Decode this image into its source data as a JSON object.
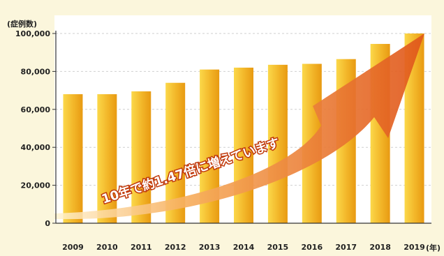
{
  "chart_data": {
    "type": "bar",
    "ylabel": "(症例数)",
    "xlabel": "(年)",
    "categories": [
      "2009",
      "2010",
      "2011",
      "2012",
      "2013",
      "2014",
      "2015",
      "2016",
      "2017",
      "2018",
      "2019"
    ],
    "values": [
      68000,
      68000,
      69500,
      74000,
      81000,
      82000,
      83500,
      84000,
      86500,
      94500,
      100000
    ],
    "ylim": [
      0,
      100000
    ],
    "yticks": [
      {
        "value": 0,
        "label": "0"
      },
      {
        "value": 20000,
        "label": "20,000"
      },
      {
        "value": 40000,
        "label": "40,000"
      },
      {
        "value": 60000,
        "label": "60,000"
      },
      {
        "value": 80000,
        "label": "80,000"
      },
      {
        "value": 100000,
        "label": "100,000"
      }
    ],
    "grid": true,
    "annotation": "10年で約1.47倍に増えています",
    "colors": {
      "bar_light": "#fbd84a",
      "bar_dark": "#e89a12",
      "arrow_light": "#fff3d0",
      "arrow_dark": "#e0561a",
      "background": "#fbf6dc",
      "plot_background": "#ffffff"
    }
  }
}
